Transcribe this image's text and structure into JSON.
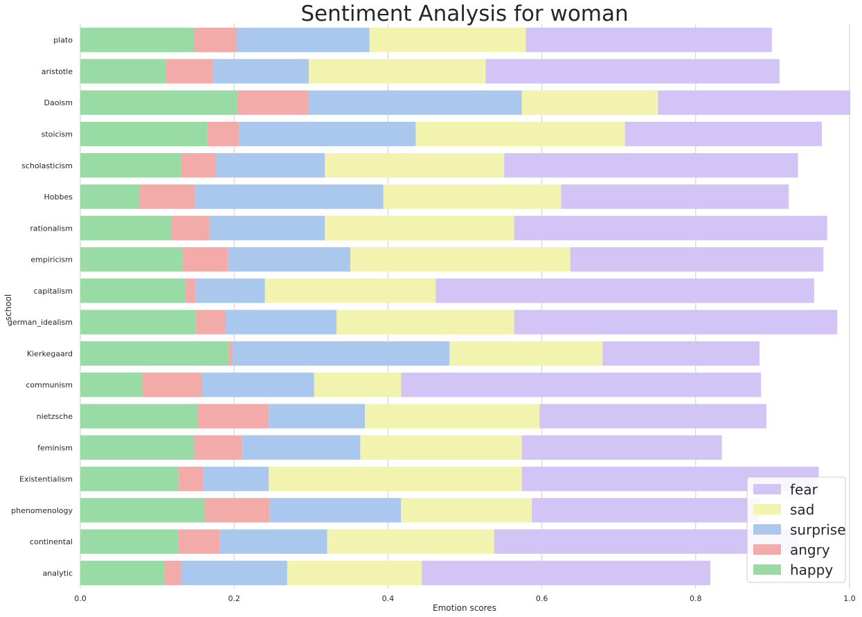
{
  "chart_data": {
    "type": "bar",
    "orientation": "horizontal",
    "stacked": true,
    "title": "Sentiment Analysis for woman",
    "xlabel": "Emotion scores",
    "ylabel": "school",
    "xlim": [
      0,
      1.0
    ],
    "xticks": [
      "0.0",
      "0.2",
      "0.4",
      "0.6",
      "0.8",
      "1.0"
    ],
    "grid": "x-vertical",
    "legend_position": "bottom-right",
    "categories": [
      "plato",
      "aristotle",
      "Daoism",
      "stoicism",
      "scholasticism",
      "Hobbes",
      "rationalism",
      "empiricism",
      "capitalism",
      "german_idealism",
      "Kierkegaard",
      "communism",
      "nietzsche",
      "feminism",
      "Existentialism",
      "phenomenology",
      "continental",
      "analytic"
    ],
    "series": [
      {
        "name": "happy",
        "color": "#98dba5",
        "values": [
          0.148,
          0.111,
          0.204,
          0.165,
          0.131,
          0.077,
          0.118,
          0.133,
          0.137,
          0.15,
          0.193,
          0.081,
          0.153,
          0.148,
          0.128,
          0.162,
          0.127,
          0.109
        ]
      },
      {
        "name": "angry",
        "color": "#f2aba8",
        "values": [
          0.055,
          0.062,
          0.093,
          0.041,
          0.045,
          0.072,
          0.05,
          0.059,
          0.013,
          0.039,
          0.005,
          0.077,
          0.092,
          0.062,
          0.032,
          0.084,
          0.054,
          0.022
        ]
      },
      {
        "name": "surprise",
        "color": "#aac8ed",
        "values": [
          0.173,
          0.124,
          0.277,
          0.23,
          0.142,
          0.245,
          0.15,
          0.159,
          0.09,
          0.144,
          0.282,
          0.146,
          0.125,
          0.154,
          0.085,
          0.171,
          0.14,
          0.138
        ]
      },
      {
        "name": "sad",
        "color": "#f3f3b0",
        "values": [
          0.203,
          0.23,
          0.177,
          0.272,
          0.233,
          0.231,
          0.246,
          0.286,
          0.222,
          0.231,
          0.199,
          0.113,
          0.227,
          0.21,
          0.329,
          0.17,
          0.217,
          0.175
        ]
      },
      {
        "name": "fear",
        "color": "#d2c5f6",
        "values": [
          0.32,
          0.382,
          0.25,
          0.256,
          0.382,
          0.296,
          0.407,
          0.329,
          0.492,
          0.42,
          0.204,
          0.468,
          0.295,
          0.26,
          0.386,
          0.296,
          0.395,
          0.375
        ]
      }
    ],
    "legend_order": [
      "fear",
      "sad",
      "surprise",
      "angry",
      "happy"
    ]
  }
}
